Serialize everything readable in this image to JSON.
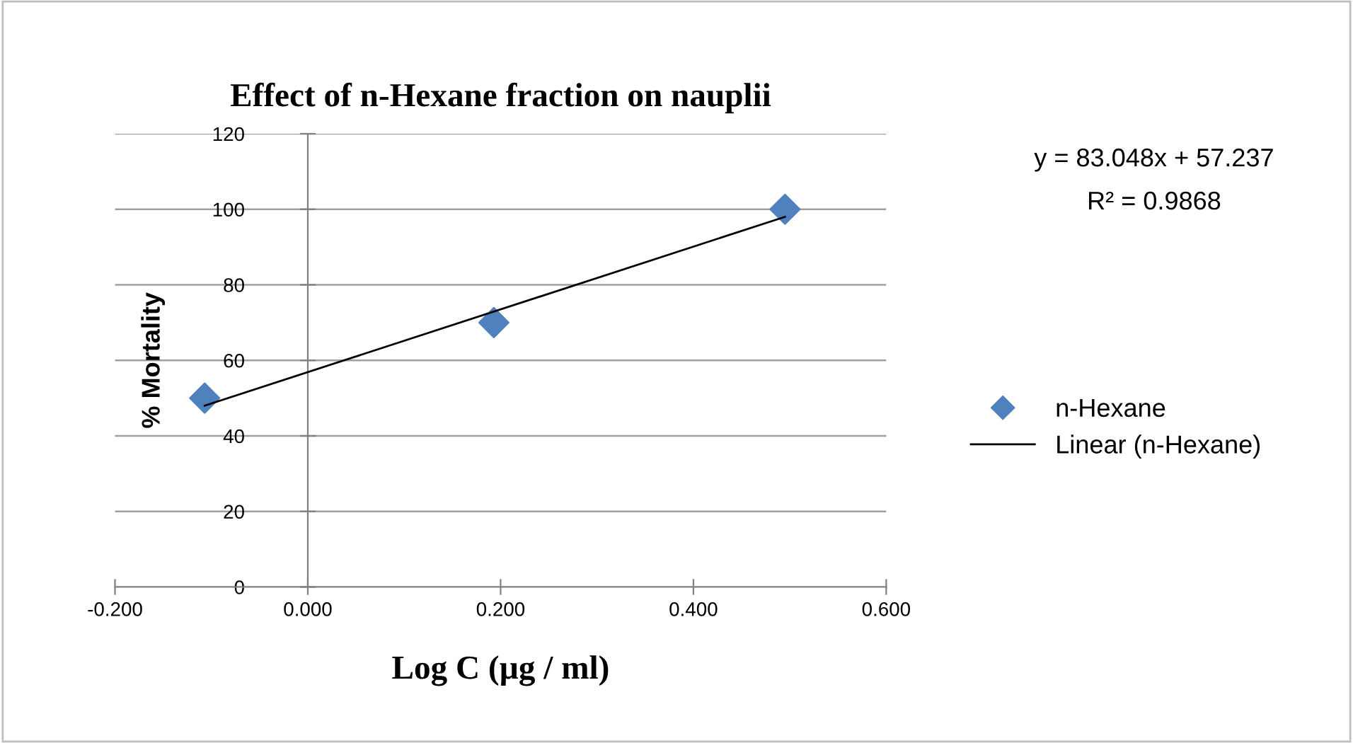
{
  "chart_data": {
    "type": "scatter",
    "title": "Effect of n-Hexane fraction on nauplii",
    "xlabel": "Log C (µg / ml)",
    "ylabel": "% Mortality",
    "xlim": [
      -0.2,
      0.6
    ],
    "xticks": [
      {
        "value": -0.2,
        "label": "-0.200"
      },
      {
        "value": 0,
        "label": "0.000"
      },
      {
        "value": 0.2,
        "label": "0.200"
      },
      {
        "value": 0.4,
        "label": "0.400"
      },
      {
        "value": 0.6,
        "label": "0.600"
      }
    ],
    "ylim": [
      0,
      120
    ],
    "yticks": [
      0,
      20,
      40,
      60,
      80,
      100,
      120
    ],
    "grid": "y",
    "legend": "right",
    "annotations": [
      "y = 83.048x + 57.237",
      "R² = 0.9868"
    ],
    "series": [
      {
        "name": "n-Hexane",
        "color": "#4f81bd",
        "marker": "diamond",
        "x": [
          -0.107,
          0.193,
          0.495
        ],
        "values": [
          50,
          70,
          100
        ]
      },
      {
        "name": "Linear (n-Hexane)",
        "type": "line",
        "color": "#000000",
        "marker": "none",
        "line_style": "solid",
        "x": [
          -0.107,
          0.495
        ],
        "values": [
          48,
          98
        ]
      }
    ]
  }
}
